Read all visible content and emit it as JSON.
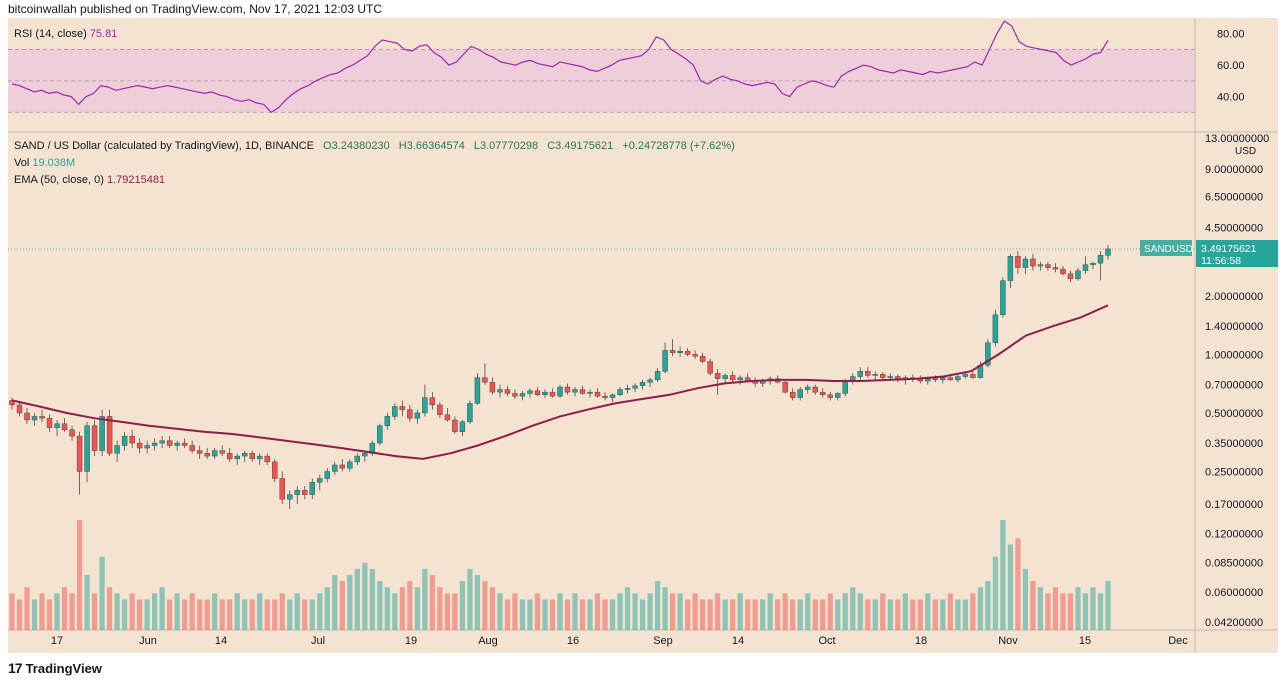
{
  "header": {
    "text": "bitcoinwallah published on TradingView.com, Nov 17, 2021 12:03 UTC"
  },
  "rsi": {
    "label": "RSI (14, close)",
    "value": "75.81"
  },
  "main": {
    "title": "SAND / US Dollar (calculated by TradingView), 1D, BINANCE",
    "open": "O3.24380230",
    "high": "H3.66364574",
    "low": "L3.07770298",
    "close": "C3.49175621",
    "change": "+0.24728778 (+7.62%)",
    "vol_label": "Vol",
    "vol_value": "19.038M",
    "ema_label": "EMA (50, close, 0)",
    "ema_value": "1.79215481"
  },
  "price_tag": {
    "symbol": "SANDUSD",
    "price": "3.49175621",
    "timer": "11:56:58"
  },
  "footer": {
    "brand": "TradingView"
  },
  "colors": {
    "bg": "#f5e3d2",
    "up": "#26a69a",
    "down": "#ef5350",
    "ema": "#8e1d4a",
    "rsi": "#9c27b0",
    "rsi_band": "#ebc7d9"
  },
  "chart_data": {
    "type": "line",
    "rsi_axis": {
      "ticks": [
        "80.00",
        "60.00",
        "40.00"
      ],
      "band": [
        30,
        70
      ]
    },
    "price_axis": {
      "unit": "USD",
      "scale": "log",
      "ticks": [
        "13.00000000",
        "9.00000000",
        "6.50000000",
        "4.50000000",
        "2.00000000",
        "1.40000000",
        "1.00000000",
        "0.70000000",
        "0.50000000",
        "0.35000000",
        "0.25000000",
        "0.17000000",
        "0.12000000",
        "0.08500000",
        "0.06000000",
        "0.04200000"
      ]
    },
    "x_axis": {
      "ticks": [
        "17",
        "Jun",
        "14",
        "Jul",
        "19",
        "Aug",
        "16",
        "Sep",
        "14",
        "Oct",
        "18",
        "Nov",
        "15",
        "Dec"
      ]
    },
    "candles": [
      [
        0.58,
        0.6,
        0.52,
        0.55
      ],
      [
        0.55,
        0.57,
        0.48,
        0.5
      ],
      [
        0.5,
        0.53,
        0.44,
        0.46
      ],
      [
        0.46,
        0.5,
        0.43,
        0.48
      ],
      [
        0.48,
        0.52,
        0.45,
        0.47
      ],
      [
        0.47,
        0.49,
        0.4,
        0.42
      ],
      [
        0.42,
        0.46,
        0.38,
        0.44
      ],
      [
        0.44,
        0.47,
        0.4,
        0.41
      ],
      [
        0.41,
        0.43,
        0.36,
        0.38
      ],
      [
        0.38,
        0.4,
        0.19,
        0.25
      ],
      [
        0.25,
        0.45,
        0.22,
        0.43
      ],
      [
        0.43,
        0.46,
        0.3,
        0.32
      ],
      [
        0.32,
        0.52,
        0.3,
        0.48
      ],
      [
        0.48,
        0.52,
        0.3,
        0.31
      ],
      [
        0.31,
        0.36,
        0.28,
        0.34
      ],
      [
        0.34,
        0.4,
        0.32,
        0.38
      ],
      [
        0.38,
        0.41,
        0.33,
        0.35
      ],
      [
        0.35,
        0.37,
        0.31,
        0.33
      ],
      [
        0.33,
        0.36,
        0.31,
        0.34
      ],
      [
        0.34,
        0.37,
        0.32,
        0.35
      ],
      [
        0.35,
        0.38,
        0.33,
        0.36
      ],
      [
        0.36,
        0.38,
        0.33,
        0.34
      ],
      [
        0.34,
        0.36,
        0.32,
        0.35
      ],
      [
        0.35,
        0.37,
        0.33,
        0.34
      ],
      [
        0.34,
        0.36,
        0.31,
        0.32
      ],
      [
        0.32,
        0.34,
        0.29,
        0.31
      ],
      [
        0.31,
        0.33,
        0.29,
        0.3
      ],
      [
        0.3,
        0.33,
        0.29,
        0.32
      ],
      [
        0.32,
        0.34,
        0.3,
        0.31
      ],
      [
        0.31,
        0.33,
        0.28,
        0.29
      ],
      [
        0.29,
        0.31,
        0.27,
        0.3
      ],
      [
        0.3,
        0.32,
        0.28,
        0.31
      ],
      [
        0.31,
        0.32,
        0.28,
        0.29
      ],
      [
        0.29,
        0.31,
        0.27,
        0.3
      ],
      [
        0.3,
        0.31,
        0.27,
        0.28
      ],
      [
        0.28,
        0.29,
        0.22,
        0.23
      ],
      [
        0.23,
        0.25,
        0.17,
        0.18
      ],
      [
        0.18,
        0.2,
        0.16,
        0.19
      ],
      [
        0.19,
        0.21,
        0.17,
        0.2
      ],
      [
        0.2,
        0.21,
        0.18,
        0.19
      ],
      [
        0.19,
        0.23,
        0.18,
        0.22
      ],
      [
        0.22,
        0.24,
        0.2,
        0.23
      ],
      [
        0.23,
        0.26,
        0.22,
        0.25
      ],
      [
        0.25,
        0.28,
        0.24,
        0.27
      ],
      [
        0.27,
        0.29,
        0.25,
        0.26
      ],
      [
        0.26,
        0.29,
        0.25,
        0.28
      ],
      [
        0.28,
        0.31,
        0.27,
        0.3
      ],
      [
        0.3,
        0.32,
        0.28,
        0.31
      ],
      [
        0.31,
        0.36,
        0.3,
        0.35
      ],
      [
        0.35,
        0.44,
        0.34,
        0.43
      ],
      [
        0.43,
        0.5,
        0.41,
        0.48
      ],
      [
        0.48,
        0.56,
        0.46,
        0.54
      ],
      [
        0.54,
        0.58,
        0.48,
        0.52
      ],
      [
        0.52,
        0.55,
        0.45,
        0.47
      ],
      [
        0.47,
        0.52,
        0.44,
        0.5
      ],
      [
        0.5,
        0.7,
        0.48,
        0.6
      ],
      [
        0.6,
        0.64,
        0.52,
        0.55
      ],
      [
        0.55,
        0.57,
        0.47,
        0.49
      ],
      [
        0.49,
        0.53,
        0.45,
        0.46
      ],
      [
        0.46,
        0.48,
        0.39,
        0.4
      ],
      [
        0.4,
        0.46,
        0.38,
        0.45
      ],
      [
        0.45,
        0.58,
        0.44,
        0.56
      ],
      [
        0.56,
        0.8,
        0.55,
        0.76
      ],
      [
        0.76,
        0.9,
        0.7,
        0.72
      ],
      [
        0.72,
        0.76,
        0.62,
        0.64
      ],
      [
        0.64,
        0.7,
        0.6,
        0.66
      ],
      [
        0.66,
        0.69,
        0.61,
        0.63
      ],
      [
        0.63,
        0.66,
        0.59,
        0.61
      ],
      [
        0.61,
        0.65,
        0.58,
        0.63
      ],
      [
        0.63,
        0.67,
        0.6,
        0.65
      ],
      [
        0.65,
        0.68,
        0.61,
        0.62
      ],
      [
        0.62,
        0.66,
        0.6,
        0.64
      ],
      [
        0.64,
        0.67,
        0.6,
        0.61
      ],
      [
        0.61,
        0.7,
        0.6,
        0.68
      ],
      [
        0.68,
        0.71,
        0.62,
        0.64
      ],
      [
        0.64,
        0.68,
        0.61,
        0.66
      ],
      [
        0.66,
        0.69,
        0.62,
        0.63
      ],
      [
        0.63,
        0.66,
        0.6,
        0.64
      ],
      [
        0.64,
        0.67,
        0.6,
        0.61
      ],
      [
        0.61,
        0.64,
        0.58,
        0.6
      ],
      [
        0.6,
        0.63,
        0.57,
        0.62
      ],
      [
        0.62,
        0.68,
        0.61,
        0.66
      ],
      [
        0.66,
        0.7,
        0.63,
        0.67
      ],
      [
        0.67,
        0.71,
        0.64,
        0.69
      ],
      [
        0.69,
        0.74,
        0.66,
        0.72
      ],
      [
        0.72,
        0.76,
        0.68,
        0.74
      ],
      [
        0.74,
        0.85,
        0.72,
        0.82
      ],
      [
        0.82,
        1.15,
        0.8,
        1.05
      ],
      [
        1.05,
        1.2,
        0.98,
        1.02
      ],
      [
        1.02,
        1.1,
        0.97,
        1.04
      ],
      [
        1.04,
        1.08,
        0.98,
        1.0
      ],
      [
        1.0,
        1.05,
        0.95,
        0.98
      ],
      [
        0.98,
        1.02,
        0.9,
        0.92
      ],
      [
        0.92,
        0.95,
        0.78,
        0.8
      ],
      [
        0.8,
        0.84,
        0.62,
        0.75
      ],
      [
        0.75,
        0.8,
        0.7,
        0.78
      ],
      [
        0.78,
        0.82,
        0.72,
        0.74
      ],
      [
        0.74,
        0.78,
        0.7,
        0.76
      ],
      [
        0.76,
        0.8,
        0.72,
        0.73
      ],
      [
        0.73,
        0.76,
        0.68,
        0.71
      ],
      [
        0.71,
        0.75,
        0.68,
        0.73
      ],
      [
        0.73,
        0.77,
        0.7,
        0.75
      ],
      [
        0.75,
        0.78,
        0.71,
        0.72
      ],
      [
        0.72,
        0.74,
        0.63,
        0.64
      ],
      [
        0.64,
        0.67,
        0.58,
        0.6
      ],
      [
        0.6,
        0.68,
        0.58,
        0.66
      ],
      [
        0.66,
        0.7,
        0.63,
        0.68
      ],
      [
        0.68,
        0.7,
        0.62,
        0.64
      ],
      [
        0.64,
        0.67,
        0.6,
        0.62
      ],
      [
        0.62,
        0.64,
        0.58,
        0.6
      ],
      [
        0.6,
        0.64,
        0.58,
        0.63
      ],
      [
        0.63,
        0.75,
        0.61,
        0.73
      ],
      [
        0.73,
        0.8,
        0.7,
        0.77
      ],
      [
        0.77,
        0.86,
        0.74,
        0.82
      ],
      [
        0.82,
        0.86,
        0.76,
        0.78
      ],
      [
        0.78,
        0.82,
        0.74,
        0.79
      ],
      [
        0.79,
        0.81,
        0.74,
        0.76
      ],
      [
        0.76,
        0.8,
        0.73,
        0.77
      ],
      [
        0.77,
        0.79,
        0.72,
        0.74
      ],
      [
        0.74,
        0.78,
        0.7,
        0.76
      ],
      [
        0.76,
        0.79,
        0.72,
        0.75
      ],
      [
        0.75,
        0.78,
        0.71,
        0.73
      ],
      [
        0.73,
        0.77,
        0.7,
        0.75
      ],
      [
        0.75,
        0.78,
        0.72,
        0.74
      ],
      [
        0.74,
        0.78,
        0.71,
        0.76
      ],
      [
        0.76,
        0.79,
        0.73,
        0.74
      ],
      [
        0.74,
        0.79,
        0.72,
        0.77
      ],
      [
        0.77,
        0.81,
        0.75,
        0.79
      ],
      [
        0.79,
        0.82,
        0.75,
        0.76
      ],
      [
        0.76,
        0.92,
        0.75,
        0.88
      ],
      [
        0.88,
        1.2,
        0.86,
        1.15
      ],
      [
        1.15,
        1.7,
        1.1,
        1.6
      ],
      [
        1.6,
        2.5,
        1.55,
        2.4
      ],
      [
        2.4,
        3.3,
        2.2,
        3.2
      ],
      [
        3.2,
        3.4,
        2.6,
        2.8
      ],
      [
        2.8,
        3.2,
        2.6,
        3.1
      ],
      [
        3.1,
        3.3,
        2.7,
        2.85
      ],
      [
        2.85,
        3.0,
        2.7,
        2.9
      ],
      [
        2.9,
        3.0,
        2.7,
        2.8
      ],
      [
        2.8,
        2.95,
        2.65,
        2.75
      ],
      [
        2.75,
        2.85,
        2.55,
        2.6
      ],
      [
        2.6,
        2.7,
        2.35,
        2.45
      ],
      [
        2.45,
        2.8,
        2.4,
        2.7
      ],
      [
        2.7,
        3.2,
        2.6,
        2.9
      ],
      [
        2.9,
        3.0,
        2.75,
        2.95
      ],
      [
        2.95,
        3.4,
        2.4,
        3.24
      ],
      [
        3.24,
        3.66,
        3.08,
        3.49
      ]
    ],
    "ema": [
      0.58,
      0.54,
      0.5,
      0.47,
      0.45,
      0.43,
      0.415,
      0.4,
      0.39,
      0.375,
      0.36,
      0.345,
      0.33,
      0.315,
      0.3,
      0.29,
      0.31,
      0.34,
      0.38,
      0.43,
      0.48,
      0.52,
      0.56,
      0.59,
      0.62,
      0.67,
      0.71,
      0.73,
      0.74,
      0.74,
      0.73,
      0.73,
      0.74,
      0.75,
      0.77,
      0.82,
      1.0,
      1.25,
      1.4,
      1.55,
      1.79
    ],
    "volume": [
      0.06,
      0.05,
      0.07,
      0.05,
      0.06,
      0.05,
      0.06,
      0.07,
      0.06,
      0.18,
      0.09,
      0.06,
      0.12,
      0.07,
      0.06,
      0.05,
      0.06,
      0.05,
      0.05,
      0.06,
      0.07,
      0.05,
      0.06,
      0.05,
      0.06,
      0.05,
      0.05,
      0.06,
      0.05,
      0.05,
      0.06,
      0.05,
      0.05,
      0.06,
      0.05,
      0.05,
      0.06,
      0.05,
      0.06,
      0.05,
      0.05,
      0.06,
      0.07,
      0.09,
      0.08,
      0.09,
      0.1,
      0.11,
      0.1,
      0.08,
      0.07,
      0.06,
      0.07,
      0.08,
      0.07,
      0.1,
      0.09,
      0.07,
      0.06,
      0.06,
      0.08,
      0.1,
      0.09,
      0.08,
      0.07,
      0.06,
      0.05,
      0.06,
      0.05,
      0.05,
      0.06,
      0.05,
      0.05,
      0.06,
      0.05,
      0.06,
      0.05,
      0.05,
      0.06,
      0.05,
      0.05,
      0.06,
      0.07,
      0.06,
      0.05,
      0.06,
      0.08,
      0.07,
      0.06,
      0.06,
      0.05,
      0.06,
      0.05,
      0.05,
      0.06,
      0.05,
      0.05,
      0.06,
      0.05,
      0.05,
      0.05,
      0.06,
      0.05,
      0.06,
      0.05,
      0.05,
      0.06,
      0.05,
      0.05,
      0.06,
      0.05,
      0.06,
      0.07,
      0.06,
      0.05,
      0.05,
      0.06,
      0.05,
      0.05,
      0.06,
      0.05,
      0.05,
      0.06,
      0.05,
      0.05,
      0.06,
      0.05,
      0.05,
      0.06,
      0.07,
      0.08,
      0.12,
      0.18,
      0.14,
      0.15,
      0.1,
      0.08,
      0.07,
      0.06,
      0.07,
      0.06,
      0.06,
      0.07,
      0.06,
      0.07,
      0.06,
      0.08,
      0.07,
      0.06
    ],
    "rsi": [
      48,
      47,
      45,
      43,
      44,
      42,
      43,
      41,
      40,
      35,
      40,
      42,
      47,
      46,
      44,
      45,
      46,
      47,
      46,
      45,
      46,
      47,
      46,
      45,
      44,
      43,
      42,
      43,
      41,
      40,
      38,
      37,
      38,
      36,
      35,
      30,
      33,
      38,
      42,
      45,
      47,
      50,
      52,
      54,
      55,
      58,
      60,
      63,
      66,
      72,
      76,
      75,
      74,
      70,
      69,
      72,
      73,
      68,
      65,
      60,
      62,
      67,
      72,
      70,
      67,
      65,
      62,
      61,
      60,
      62,
      63,
      61,
      60,
      59,
      62,
      61,
      60,
      59,
      57,
      56,
      58,
      60,
      63,
      64,
      65,
      66,
      70,
      78,
      76,
      70,
      67,
      64,
      60,
      50,
      48,
      51,
      53,
      51,
      50,
      48,
      47,
      48,
      49,
      48,
      42,
      40,
      46,
      48,
      50,
      49,
      47,
      46,
      53,
      56,
      58,
      60,
      59,
      57,
      56,
      55,
      57,
      56,
      55,
      54,
      56,
      55,
      56,
      57,
      58,
      59,
      62,
      60,
      70,
      80,
      88,
      85,
      75,
      72,
      71,
      70,
      69,
      68,
      63,
      60,
      62,
      64,
      67,
      68,
      75.81
    ]
  }
}
